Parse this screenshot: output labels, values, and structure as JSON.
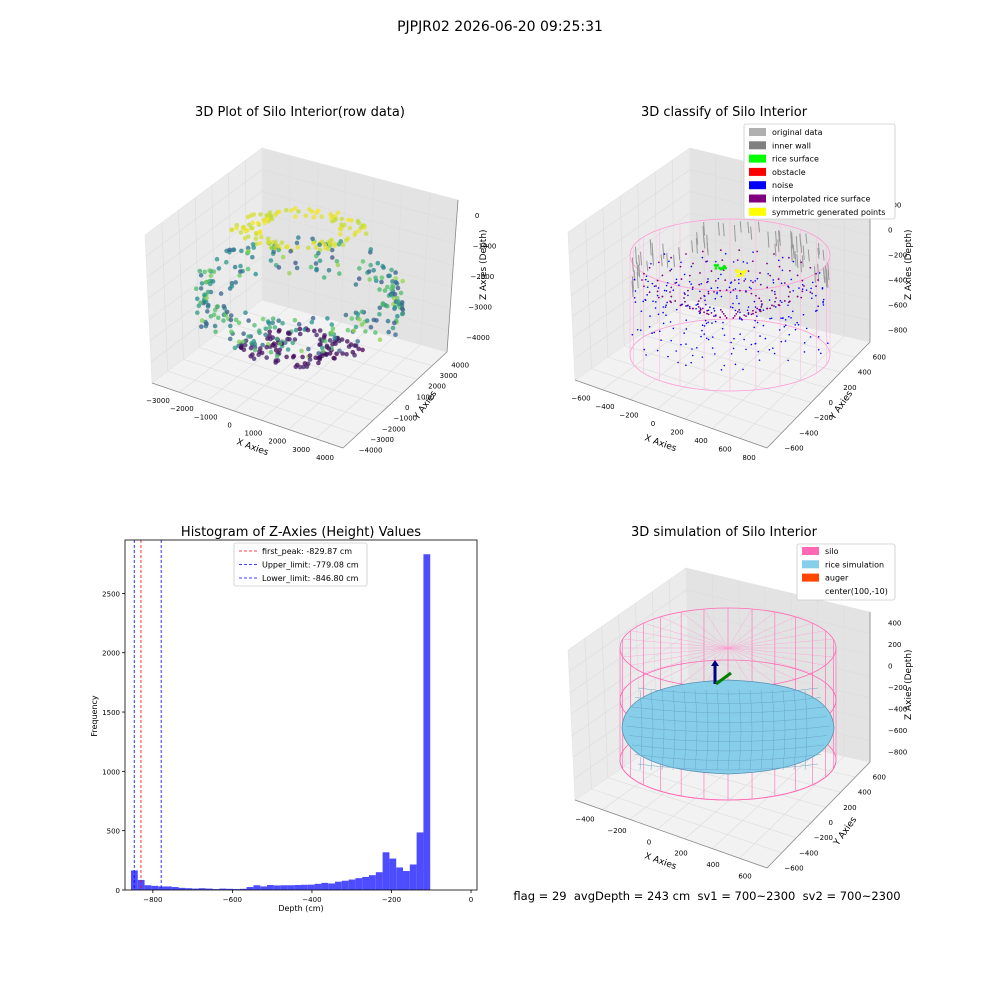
{
  "suptitle": "PJPJR02 2026-06-20 09:25:31",
  "chart_data": [
    {
      "type": "scatter",
      "title": "3D Plot of Silo Interior(row data)",
      "xlabel": "X Axies",
      "ylabel": "Y Axies",
      "zlabel": "Z Axies (Depth)",
      "x_ticks": [
        "−3000",
        "−2000",
        "−1000",
        "0",
        "1000",
        "2000",
        "3000",
        "4000"
      ],
      "y_ticks": [
        "−4000",
        "−3000",
        "−2000",
        "−1000",
        "0",
        "1000",
        "2000",
        "3000",
        "4000"
      ],
      "z_ticks": [
        "0",
        "−1000",
        "−2000",
        "−3000",
        "−4000"
      ],
      "colormap": "viridis"
    },
    {
      "type": "scatter",
      "title": "3D classify of Silo Interior",
      "xlabel": "X Axies",
      "ylabel": "Y Axies",
      "zlabel": "Z Axies (Depth)",
      "x_ticks": [
        "−600",
        "−400",
        "−200",
        "0",
        "200",
        "400",
        "600",
        "800"
      ],
      "y_ticks": [
        "−600",
        "−400",
        "−200",
        "0",
        "200",
        "400",
        "600"
      ],
      "z_ticks": [
        "200",
        "0",
        "−200",
        "−400",
        "−600",
        "−800"
      ],
      "z_ticks_partial": [
        "400",
        "200"
      ],
      "legend": [
        {
          "label": "original data",
          "color": "#b0b0b0"
        },
        {
          "label": "inner wall",
          "color": "#808080"
        },
        {
          "label": "rice surface",
          "color": "#00ff00"
        },
        {
          "label": "obstacle",
          "color": "#ff0000"
        },
        {
          "label": "noise",
          "color": "#0000ff"
        },
        {
          "label": "interpolated rice surface",
          "color": "#800080"
        },
        {
          "label": "symmetric generated points",
          "color": "#ffff00"
        }
      ],
      "legend_loc": "upper right"
    },
    {
      "type": "bar",
      "title": "Histogram of Z-Axies (Height) Values",
      "xlabel": "Depth (cm)",
      "ylabel": "Frequency",
      "xlim": [
        -870,
        15
      ],
      "ylim": [
        0,
        2950
      ],
      "x_ticks": [
        {
          "v": -800,
          "t": "−800"
        },
        {
          "v": -600,
          "t": "−600"
        },
        {
          "v": -400,
          "t": "−400"
        },
        {
          "v": -200,
          "t": "−200"
        },
        {
          "v": 0,
          "t": "0"
        }
      ],
      "y_ticks": [
        {
          "v": 0,
          "t": "0"
        },
        {
          "v": 500,
          "t": "500"
        },
        {
          "v": 1000,
          "t": "1000"
        },
        {
          "v": 1500,
          "t": "1500"
        },
        {
          "v": 2000,
          "t": "2000"
        },
        {
          "v": 2500,
          "t": "2500"
        }
      ],
      "bar_color": "#4d4dff",
      "bins_start": -855,
      "bin_width": 17.1,
      "values": [
        165,
        85,
        40,
        35,
        30,
        30,
        25,
        18,
        15,
        12,
        15,
        12,
        8,
        12,
        10,
        8,
        10,
        25,
        40,
        30,
        42,
        38,
        40,
        40,
        42,
        44,
        45,
        52,
        60,
        55,
        70,
        78,
        88,
        100,
        110,
        125,
        150,
        318,
        265,
        190,
        160,
        215,
        485,
        2830
      ],
      "vlines": [
        {
          "label": "first_peak: -829.87 cm",
          "x": -829.87,
          "color": "#ff0000"
        },
        {
          "label": "Upper_limit: -779.08 cm",
          "x": -779.08,
          "color": "#0000ff"
        },
        {
          "label": "Lower_limit: -846.80 cm",
          "x": -846.8,
          "color": "#0000ff"
        }
      ],
      "legend_loc": "upper center"
    },
    {
      "type": "scatter",
      "title": "3D simulation of Silo Interior",
      "xlabel": "X Axies",
      "ylabel": "Y Axies",
      "zlabel": "Z Axies (Depth)",
      "x_ticks": [
        "−400",
        "−200",
        "0",
        "200",
        "400",
        "600"
      ],
      "y_ticks": [
        "−600",
        "−400",
        "−200",
        "0",
        "200",
        "400",
        "600"
      ],
      "z_ticks": [
        "400",
        "200",
        "0",
        "−200",
        "−400",
        "−600",
        "−800"
      ],
      "legend": [
        {
          "label": "silo",
          "color": "#ff69b4"
        },
        {
          "label": "rice simulation",
          "color": "#87ceeb"
        },
        {
          "label": "auger",
          "color": "#ff4500"
        },
        {
          "label": "center(100,-10)",
          "color": ""
        }
      ],
      "legend_loc": "upper right"
    }
  ],
  "footer": "flag = 29  avgDepth = 243 cm  sv1 = 700~2300  sv2 = 700~2300"
}
